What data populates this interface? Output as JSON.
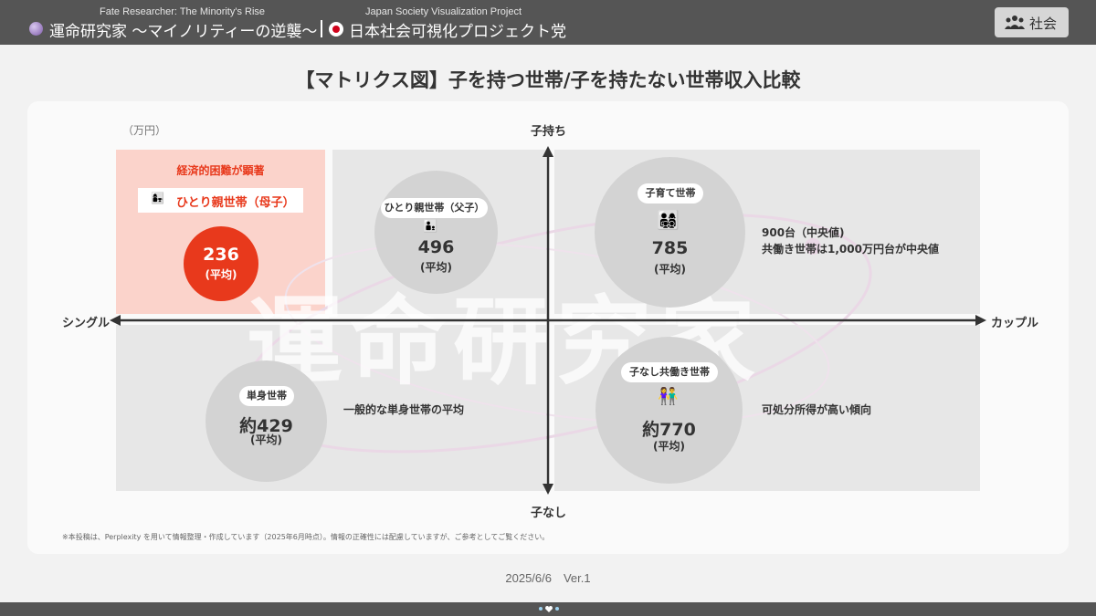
{
  "header": {
    "left_subtitle": "Fate Researcher: The Minority's Rise",
    "left_title": "運命研究家 〜マイノリティーの逆襲〜",
    "right_subtitle": "Japan Society Visualization Project",
    "right_title": "日本社会可視化プロジェクト党",
    "category_button": "社会",
    "icons": {
      "left": "crystal-ball-icon",
      "right": "japan-flag-icon",
      "button": "people-group-icon"
    }
  },
  "chart_data": {
    "type": "matrix",
    "title": "【マトリクス図】子を持つ世帯/子を持たない世帯収入比較",
    "unit": "（万円）",
    "axes": {
      "y_top": "子持ち",
      "y_bottom": "子なし",
      "x_left": "シングル",
      "x_right": "カップル"
    },
    "watermark": "運命研究家",
    "quadrants": [
      {
        "position": "top-left-outer",
        "label": "ひとり親世帯（母子）",
        "value": "236",
        "value_suffix": "(平均)",
        "warning": "経済的困難が顕著",
        "highlight": true,
        "highlight_color": "#e8391c",
        "emoji": "👩‍👧"
      },
      {
        "position": "top-left-inner",
        "label": "ひとり親世帯（父子）",
        "value": "496",
        "value_suffix": "(平均)",
        "emoji": "👨‍👦"
      },
      {
        "position": "top-right",
        "label": "子育て世帯",
        "value": "785",
        "value_suffix": "(平均)",
        "emoji": "👨‍👩‍👧‍👦",
        "note_line1": "900台（中央値)",
        "note_line2": "共働き世帯は1,000万円台が中央値"
      },
      {
        "position": "bottom-left",
        "label": "単身世帯",
        "value": "約429",
        "value_suffix": "(平均)",
        "note_line1": "一般的な単身世帯の平均"
      },
      {
        "position": "bottom-right",
        "label": "子なし共働き世帯",
        "value": "約770",
        "value_suffix": "(平均)",
        "emoji": "👫",
        "note_line1": "可処分所得が高い傾向"
      }
    ]
  },
  "footer": {
    "disclaimer": "※本投稿は、Perplexity を用いて情報整理・作成しています（2025年6月時点）。情報の正確性には配慮していますが、ご参考としてご覧ください。",
    "date": "2025/6/6　Ver.1"
  },
  "colors": {
    "header_bg": "#555555",
    "accent_red": "#e8391c",
    "highlight_bg": "#fbd3cb",
    "quadrant_bg": "#e7e7e7",
    "circle_bg": "#d3d3d3"
  }
}
